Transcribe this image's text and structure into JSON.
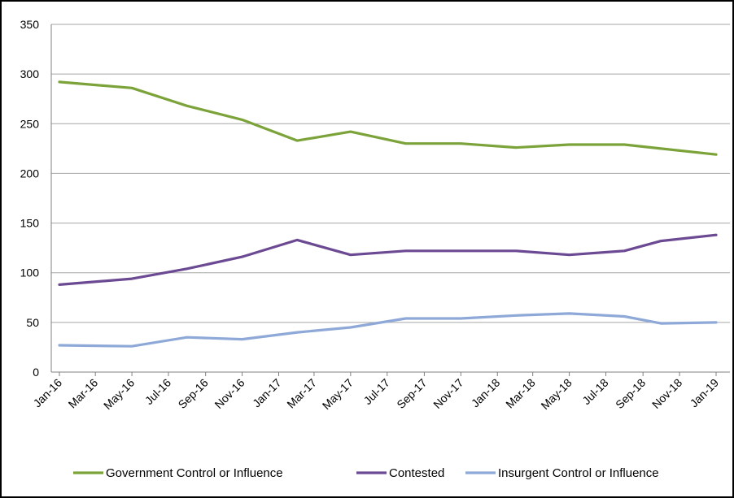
{
  "chart_data": {
    "type": "line",
    "title": "",
    "xlabel": "",
    "ylabel": "",
    "ylim": [
      0,
      350
    ],
    "yticks": [
      0,
      50,
      100,
      150,
      200,
      250,
      300,
      350
    ],
    "grid": true,
    "legend_position": "bottom",
    "x_tick_labels": [
      "Jan-16",
      "Mar-16",
      "May-16",
      "Jul-16",
      "Sep-16",
      "Nov-16",
      "Jan-17",
      "Mar-17",
      "May-17",
      "Jul-17",
      "Sep-17",
      "Nov-17",
      "Jan-18",
      "Mar-18",
      "May-18",
      "Jul-18",
      "Sep-18",
      "Nov-18",
      "Jan-19"
    ],
    "x": [
      "2016-01",
      "2016-05",
      "2016-08",
      "2016-11",
      "2017-02",
      "2017-05",
      "2017-08",
      "2017-11",
      "2018-02",
      "2018-05",
      "2018-08",
      "2018-10",
      "2019-01"
    ],
    "series": [
      {
        "name": "Government Control or Influence",
        "color": "#7ba33a",
        "values": [
          292,
          286,
          268,
          254,
          233,
          242,
          230,
          230,
          226,
          229,
          229,
          225,
          219
        ]
      },
      {
        "name": "Contested",
        "color": "#6b4a93",
        "values": [
          88,
          94,
          104,
          116,
          133,
          118,
          122,
          122,
          122,
          118,
          122,
          132,
          138
        ]
      },
      {
        "name": "Insurgent Control or Influence",
        "color": "#8ea9d8",
        "values": [
          27,
          26,
          35,
          33,
          40,
          45,
          54,
          54,
          57,
          59,
          56,
          49,
          50
        ]
      }
    ]
  }
}
